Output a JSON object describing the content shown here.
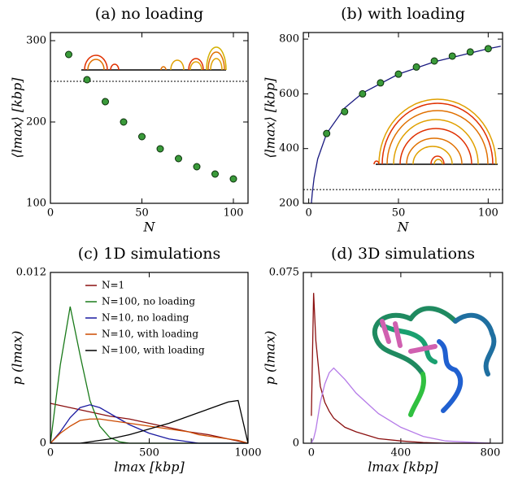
{
  "chart_data": [
    {
      "type": "scatter",
      "title": "(a) no loading",
      "xlabel": "N",
      "ylabel": "⟨lmax⟩ [kbp]",
      "xlim": [
        0,
        108
      ],
      "xticks": [
        0,
        50,
        100
      ],
      "ylim": [
        100,
        310
      ],
      "yticks": [
        100,
        200,
        300
      ],
      "hlines": [
        250
      ],
      "series": [
        {
          "color": "#3a9a3a",
          "x": [
            10,
            20,
            30,
            40,
            50,
            60,
            70,
            80,
            90,
            100
          ],
          "values": [
            283,
            252,
            225,
            200,
            182,
            167,
            155,
            145,
            136,
            130
          ]
        }
      ]
    },
    {
      "type": "scatter",
      "title": "(b) with loading",
      "xlabel": "N",
      "ylabel": "⟨lmax⟩ [kbp]",
      "xlim": [
        -3,
        108
      ],
      "xticks": [
        0,
        50,
        100
      ],
      "ylim": [
        200,
        824
      ],
      "yticks": [
        200,
        400,
        600,
        800
      ],
      "hlines": [
        250
      ],
      "series": [
        {
          "type": "line",
          "color": "#1a1a80",
          "x": [
            1.5,
            2,
            3,
            5,
            10,
            20,
            30,
            50,
            70,
            100,
            107
          ],
          "values": [
            200,
            238,
            293,
            362,
            455,
            548,
            603,
            672,
            717,
            765,
            774
          ]
        },
        {
          "color": "#3a9a3a",
          "x": [
            10,
            20,
            30,
            40,
            50,
            60,
            70,
            80,
            90,
            100
          ],
          "values": [
            455,
            535,
            600,
            640,
            672,
            698,
            720,
            738,
            753,
            765
          ]
        }
      ]
    },
    {
      "type": "line",
      "title": "(c) 1D simulations",
      "xlabel": "lmax [kbp]",
      "ylabel": "p (lmax)",
      "xlim": [
        0,
        1000
      ],
      "xticks": [
        0,
        500,
        1000
      ],
      "ylim": [
        0,
        0.012
      ],
      "yticks": [
        0,
        0.012
      ],
      "legend": "upper right",
      "x": [
        0,
        50,
        100,
        150,
        200,
        250,
        300,
        350,
        400,
        450,
        500,
        550,
        600,
        650,
        700,
        750,
        800,
        850,
        900,
        950,
        1000
      ],
      "series": [
        {
          "name": "N=1",
          "color": "#8b1010",
          "values": [
            0.0028,
            0.00265,
            0.0025,
            0.00235,
            0.0022,
            0.00205,
            0.0019,
            0.0018,
            0.0017,
            0.00155,
            0.0014,
            0.00125,
            0.0011,
            0.00095,
            0.0008,
            0.0007,
            0.0006,
            0.00045,
            0.0003,
            0.00015,
            0
          ]
        },
        {
          "name": "N=100, no loading",
          "color": "#1a7a1a",
          "values": [
            0,
            0.0055,
            0.0096,
            0.0062,
            0.003,
            0.0012,
            0.0004,
            0.0001,
            0,
            0,
            0,
            0,
            0,
            0,
            0,
            0,
            0,
            0,
            0,
            0,
            0
          ]
        },
        {
          "name": "N=10, no loading",
          "color": "#1a1aa0",
          "values": [
            0,
            0.0008,
            0.0018,
            0.0025,
            0.0027,
            0.0025,
            0.0021,
            0.0017,
            0.0013,
            0.001,
            0.0007,
            0.0005,
            0.0003,
            0.0002,
            0.0001,
            0,
            0,
            0,
            0,
            0,
            0
          ]
        },
        {
          "name": "N=10, with loading",
          "color": "#cc4a00",
          "values": [
            0,
            0.0007,
            0.0012,
            0.0016,
            0.0017,
            0.0017,
            0.0016,
            0.0015,
            0.0014,
            0.0013,
            0.0012,
            0.0011,
            0.001,
            0.0009,
            0.0008,
            0.0006,
            0.0005,
            0.0004,
            0.0003,
            0.0002,
            0
          ]
        },
        {
          "name": "N=100, with loading",
          "color": "#000000",
          "values": [
            0,
            0,
            0,
            0,
            0.0001,
            0.0002,
            0.0003,
            0.00045,
            0.0006,
            0.0008,
            0.001,
            0.0012,
            0.0014,
            0.00165,
            0.0019,
            0.00215,
            0.0024,
            0.00265,
            0.0029,
            0.003,
            0
          ]
        }
      ]
    },
    {
      "type": "line",
      "title": "(d) 3D simulations",
      "xlabel": "lmax [kbp]",
      "ylabel": "p (lmax)",
      "xlim": [
        -36,
        855
      ],
      "xticks": [
        0,
        400,
        800
      ],
      "ylim": [
        0,
        0.075
      ],
      "yticks": [
        0,
        0.075
      ],
      "x": [
        0,
        10,
        20,
        40,
        60,
        80,
        100,
        150,
        200,
        300,
        400,
        500,
        600,
        800
      ],
      "series": [
        {
          "color": "#8b1010",
          "values": [
            0.012,
            0.066,
            0.045,
            0.025,
            0.018,
            0.014,
            0.011,
            0.007,
            0.005,
            0.002,
            0.001,
            0.0003,
            0,
            0
          ]
        },
        {
          "color": "#b57be8",
          "values": [
            0,
            0.002,
            0.006,
            0.018,
            0.026,
            0.031,
            0.033,
            0.028,
            0.022,
            0.013,
            0.007,
            0.003,
            0.001,
            0
          ]
        }
      ]
    }
  ]
}
